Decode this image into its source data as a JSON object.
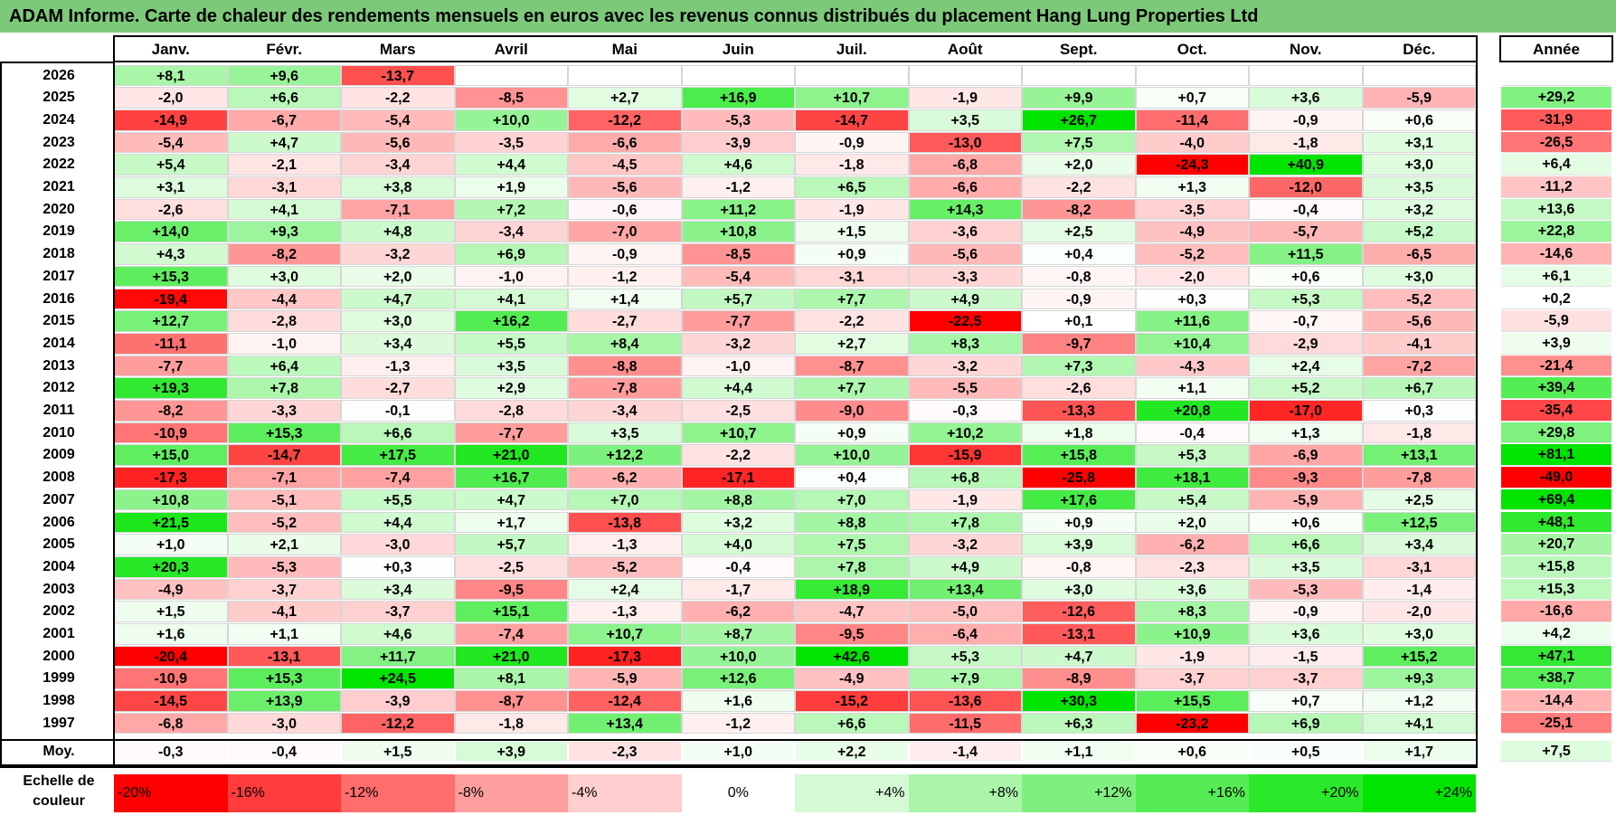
{
  "title": "ADAM Informe. Carte de chaleur des rendements mensuels en euros avec les revenus connus distribués du placement Hang Lung Properties Ltd",
  "chart_data": {
    "type": "heatmap",
    "title": "ADAM Informe. Carte de chaleur des rendements mensuels en euros avec les revenus connus distribués du placement Hang Lung Properties Ltd",
    "columns": [
      "Janv.",
      "Févr.",
      "Mars",
      "Avril",
      "Mai",
      "Juin",
      "Juil.",
      "Août",
      "Sept.",
      "Oct.",
      "Nov.",
      "Déc."
    ],
    "year_header": "Année",
    "rows": [
      {
        "label": "2026",
        "values": [
          "+8,1",
          "+9,6",
          "-13,7",
          "",
          "",
          "",
          "",
          "",
          "",
          "",
          "",
          ""
        ],
        "year": ""
      },
      {
        "label": "2025",
        "values": [
          "-2,0",
          "+6,6",
          "-2,2",
          "-8,5",
          "+2,7",
          "+16,9",
          "+10,7",
          "-1,9",
          "+9,9",
          "+0,7",
          "+3,6",
          "-5,9"
        ],
        "year": "+29,2"
      },
      {
        "label": "2024",
        "values": [
          "-14,9",
          "-6,7",
          "-5,4",
          "+10,0",
          "-12,2",
          "-5,3",
          "-14,7",
          "+3,5",
          "+26,7",
          "-11,4",
          "-0,9",
          "+0,6"
        ],
        "year": "-31,9"
      },
      {
        "label": "2023",
        "values": [
          "-5,4",
          "+4,7",
          "-5,6",
          "-3,5",
          "-6,6",
          "-3,9",
          "-0,9",
          "-13,0",
          "+7,5",
          "-4,0",
          "-1,8",
          "+3,1"
        ],
        "year": "-26,5"
      },
      {
        "label": "2022",
        "values": [
          "+5,4",
          "-2,1",
          "-3,4",
          "+4,4",
          "-4,5",
          "+4,6",
          "-1,8",
          "-6,8",
          "+2,0",
          "-24,3",
          "+40,9",
          "+3,0"
        ],
        "year": "+6,4"
      },
      {
        "label": "2021",
        "values": [
          "+3,1",
          "-3,1",
          "+3,8",
          "+1,9",
          "-5,6",
          "-1,2",
          "+6,5",
          "-6,6",
          "-2,2",
          "+1,3",
          "-12,0",
          "+3,5"
        ],
        "year": "-11,2"
      },
      {
        "label": "2020",
        "values": [
          "-2,6",
          "+4,1",
          "-7,1",
          "+7,2",
          "-0,6",
          "+11,2",
          "-1,9",
          "+14,3",
          "-8,2",
          "-3,5",
          "-0,4",
          "+3,2"
        ],
        "year": "+13,6"
      },
      {
        "label": "2019",
        "values": [
          "+14,0",
          "+9,3",
          "+4,8",
          "-3,4",
          "-7,0",
          "+10,8",
          "+1,5",
          "-3,6",
          "+2,5",
          "-4,9",
          "-5,7",
          "+5,2"
        ],
        "year": "+22,8"
      },
      {
        "label": "2018",
        "values": [
          "+4,3",
          "-8,2",
          "-3,2",
          "+6,9",
          "-0,9",
          "-8,5",
          "+0,9",
          "-5,6",
          "+0,4",
          "-5,2",
          "+11,5",
          "-6,5"
        ],
        "year": "-14,6"
      },
      {
        "label": "2017",
        "values": [
          "+15,3",
          "+3,0",
          "+2,0",
          "-1,0",
          "-1,2",
          "-5,4",
          "-3,1",
          "-3,3",
          "-0,8",
          "-2,0",
          "+0,6",
          "+3,0"
        ],
        "year": "+6,1"
      },
      {
        "label": "2016",
        "values": [
          "-19,4",
          "-4,4",
          "+4,7",
          "+4,1",
          "+1,4",
          "+5,7",
          "+7,7",
          "+4,9",
          "-0,9",
          "+0,3",
          "+5,3",
          "-5,2"
        ],
        "year": "+0,2"
      },
      {
        "label": "2015",
        "values": [
          "+12,7",
          "-2,8",
          "+3,0",
          "+16,2",
          "-2,7",
          "-7,7",
          "-2,2",
          "-22,5",
          "+0,1",
          "+11,6",
          "-0,7",
          "-5,6"
        ],
        "year": "-5,9"
      },
      {
        "label": "2014",
        "values": [
          "-11,1",
          "-1,0",
          "+3,4",
          "+5,5",
          "+8,4",
          "-3,2",
          "+2,7",
          "+8,3",
          "-9,7",
          "+10,4",
          "-2,9",
          "-4,1"
        ],
        "year": "+3,9"
      },
      {
        "label": "2013",
        "values": [
          "-7,7",
          "+6,4",
          "-1,3",
          "+3,5",
          "-8,8",
          "-1,0",
          "-8,7",
          "-3,2",
          "+7,3",
          "-4,3",
          "+2,4",
          "-7,2"
        ],
        "year": "-21,4"
      },
      {
        "label": "2012",
        "values": [
          "+19,3",
          "+7,8",
          "-2,7",
          "+2,9",
          "-7,8",
          "+4,4",
          "+7,7",
          "-5,5",
          "-2,6",
          "+1,1",
          "+5,2",
          "+6,7"
        ],
        "year": "+39,4"
      },
      {
        "label": "2011",
        "values": [
          "-8,2",
          "-3,3",
          "-0,1",
          "-2,8",
          "-3,4",
          "-2,5",
          "-9,0",
          "-0,3",
          "-13,3",
          "+20,8",
          "-17,0",
          "+0,3"
        ],
        "year": "-35,4"
      },
      {
        "label": "2010",
        "values": [
          "-10,9",
          "+15,3",
          "+6,6",
          "-7,7",
          "+3,5",
          "+10,7",
          "+0,9",
          "+10,2",
          "+1,8",
          "-0,4",
          "+1,3",
          "-1,8"
        ],
        "year": "+29,8"
      },
      {
        "label": "2009",
        "values": [
          "+15,0",
          "-14,7",
          "+17,5",
          "+21,0",
          "+12,2",
          "-2,2",
          "+10,0",
          "-15,9",
          "+15,8",
          "+5,3",
          "-6,9",
          "+13,1"
        ],
        "year": "+81,1"
      },
      {
        "label": "2008",
        "values": [
          "-17,3",
          "-7,1",
          "-7,4",
          "+16,7",
          "-6,2",
          "-17,1",
          "+0,4",
          "+6,8",
          "-25,8",
          "+18,1",
          "-9,3",
          "-7,8"
        ],
        "year": "-49,0"
      },
      {
        "label": "2007",
        "values": [
          "+10,8",
          "-5,1",
          "+5,5",
          "+4,7",
          "+7,0",
          "+8,8",
          "+7,0",
          "-1,9",
          "+17,6",
          "+5,4",
          "-5,9",
          "+2,5"
        ],
        "year": "+69,4"
      },
      {
        "label": "2006",
        "values": [
          "+21,5",
          "-5,2",
          "+4,4",
          "+1,7",
          "-13,8",
          "+3,2",
          "+8,8",
          "+7,8",
          "+0,9",
          "+2,0",
          "+0,6",
          "+12,5"
        ],
        "year": "+48,1"
      },
      {
        "label": "2005",
        "values": [
          "+1,0",
          "+2,1",
          "-3,0",
          "+5,7",
          "-1,3",
          "+4,0",
          "+7,5",
          "-3,2",
          "+3,9",
          "-6,2",
          "+6,6",
          "+3,4"
        ],
        "year": "+20,7"
      },
      {
        "label": "2004",
        "values": [
          "+20,3",
          "-5,3",
          "+0,3",
          "-2,5",
          "-5,2",
          "-0,4",
          "+7,8",
          "+4,9",
          "-0,8",
          "-2,3",
          "+3,5",
          "-3,1"
        ],
        "year": "+15,8"
      },
      {
        "label": "2003",
        "values": [
          "-4,9",
          "-3,7",
          "+3,4",
          "-9,5",
          "+2,4",
          "-1,7",
          "+18,9",
          "+13,4",
          "+3,0",
          "+3,6",
          "-5,3",
          "-1,4"
        ],
        "year": "+15,3"
      },
      {
        "label": "2002",
        "values": [
          "+1,5",
          "-4,1",
          "-3,7",
          "+15,1",
          "-1,3",
          "-6,2",
          "-4,7",
          "-5,0",
          "-12,6",
          "+8,3",
          "-0,9",
          "-2,0"
        ],
        "year": "-16,6"
      },
      {
        "label": "2001",
        "values": [
          "+1,6",
          "+1,1",
          "+4,6",
          "-7,4",
          "+10,7",
          "+8,7",
          "-9,5",
          "-6,4",
          "-13,1",
          "+10,9",
          "+3,6",
          "+3,0"
        ],
        "year": "+4,2"
      },
      {
        "label": "2000",
        "values": [
          "-20,4",
          "-13,1",
          "+11,7",
          "+21,0",
          "-17,3",
          "+10,0",
          "+42,6",
          "+5,3",
          "+4,7",
          "-1,9",
          "-1,5",
          "+15,2"
        ],
        "year": "+47,1"
      },
      {
        "label": "1999",
        "values": [
          "-10,9",
          "+15,3",
          "+24,5",
          "+8,1",
          "-5,9",
          "+12,6",
          "-4,9",
          "+7,9",
          "-8,9",
          "-3,7",
          "-3,7",
          "+9,3"
        ],
        "year": "+38,7"
      },
      {
        "label": "1998",
        "values": [
          "-14,5",
          "+13,9",
          "-3,9",
          "-8,7",
          "-12,4",
          "+1,6",
          "-15,2",
          "-13,6",
          "+30,3",
          "+15,5",
          "+0,7",
          "+1,2"
        ],
        "year": "-14,4"
      },
      {
        "label": "1997",
        "values": [
          "-6,8",
          "-3,0",
          "-12,2",
          "-1,8",
          "+13,4",
          "-1,2",
          "+6,6",
          "-11,5",
          "+6,3",
          "-23,2",
          "+6,9",
          "+4,1"
        ],
        "year": "-25,1"
      }
    ],
    "average": {
      "label": "Moy.",
      "values": [
        "-0,3",
        "-0,4",
        "+1,5",
        "+3,9",
        "-2,3",
        "+1,0",
        "+2,2",
        "-1,4",
        "+1,1",
        "+0,6",
        "+0,5",
        "+1,7"
      ],
      "year": "+7,5"
    },
    "scale_label": "Echelle de couleur",
    "scale": [
      {
        "label": "-20%",
        "value": -20,
        "color": "#ff0000"
      },
      {
        "label": "-16%",
        "value": -16,
        "color": "#ff3b3b"
      },
      {
        "label": "-12%",
        "value": -12,
        "color": "#ff6d6d"
      },
      {
        "label": "-8%",
        "value": -8,
        "color": "#ff9e9e"
      },
      {
        "label": "-4%",
        "value": -4,
        "color": "#ffcece"
      },
      {
        "label": "0%",
        "value": 0,
        "color": "#ffffff"
      },
      {
        "label": "+4%",
        "value": 4,
        "color": "#d4f9d4"
      },
      {
        "label": "+8%",
        "value": 8,
        "color": "#aaf5aa"
      },
      {
        "label": "+12%",
        "value": 12,
        "color": "#7ff07f"
      },
      {
        "label": "+16%",
        "value": 16,
        "color": "#55ec55"
      },
      {
        "label": "+20%",
        "value": 20,
        "color": "#2ae82a"
      },
      {
        "label": "+24%",
        "value": 24,
        "color": "#00e400"
      }
    ],
    "colors": {
      "negative_max": "#ff0000",
      "neutral": "#ffffff",
      "positive_max": "#00e400",
      "title_bar": "#7dc97a"
    }
  }
}
